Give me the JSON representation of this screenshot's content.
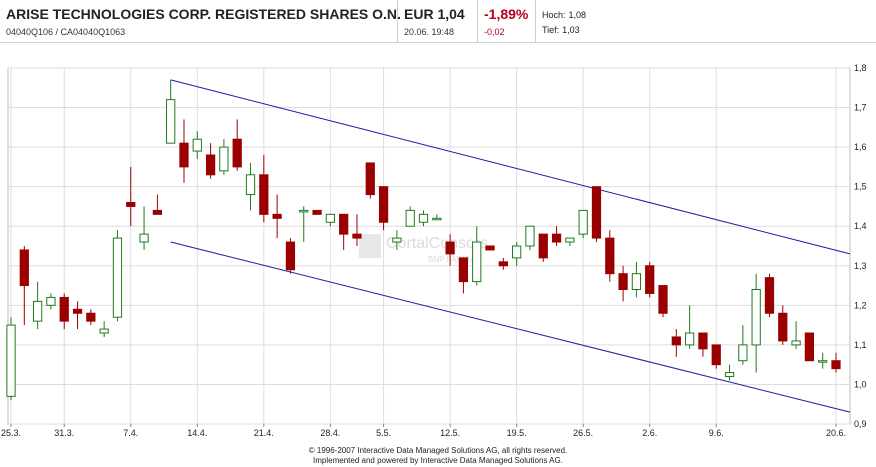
{
  "header": {
    "name": "ARISE TECHNOLOGIES CORP. REGISTERED SHARES O.N.",
    "ids": "04040Q106  /  CA04040Q1063",
    "price": "EUR 1,04",
    "datetime": "20.06. 19:48",
    "change_pct": "-1,89%",
    "change_abs": "-0,02",
    "high_label": "Hoch:",
    "high_value": "1,08",
    "low_label": "Tief:",
    "low_value": "1,03"
  },
  "watermark": {
    "line1": "CortalConsors",
    "line2": "BNP PARIBAS"
  },
  "footer": {
    "line1": "© 1996-2007 Interactive Data Managed Solutions AG, all rights reserved.",
    "line2": "Implemented and powered by Interactive Data Managed Solutions AG."
  },
  "colors": {
    "up_body": "#ffffff",
    "up_stroke": "#1f7a1f",
    "down_body": "#9b0000",
    "trend_line": "#1a1aa6",
    "grid": "#dddddd"
  },
  "chart_data": {
    "type": "candlestick",
    "ylim": [
      0.9,
      1.8
    ],
    "y_ticks": [
      "0,9",
      "1,0",
      "1,1",
      "1,2",
      "1,3",
      "1,4",
      "1,5",
      "1,6",
      "1,7",
      "1,8"
    ],
    "x_tick_labels": [
      "25.3.",
      "31.3.",
      "7.4.",
      "14.4.",
      "21.4.",
      "28.4.",
      "5.5.",
      "12.5.",
      "19.5.",
      "26.5.",
      "2.6.",
      "9.6.",
      "20.6."
    ],
    "grid": true,
    "trend_channel": {
      "upper": {
        "start": [
          "10.4.",
          1.77
        ],
        "end": [
          "20.6.",
          1.33
        ]
      },
      "lower": {
        "start": [
          "10.4.",
          1.36
        ],
        "end": [
          "20.6.",
          0.93
        ]
      }
    },
    "candles": [
      {
        "date": "25.3.",
        "open": 0.97,
        "high": 1.17,
        "low": 0.96,
        "close": 1.15
      },
      {
        "date": "26.3.",
        "open": 1.34,
        "high": 1.35,
        "low": 1.15,
        "close": 1.25
      },
      {
        "date": "27.3.",
        "open": 1.16,
        "high": 1.26,
        "low": 1.14,
        "close": 1.21
      },
      {
        "date": "28.3.",
        "open": 1.2,
        "high": 1.23,
        "low": 1.19,
        "close": 1.22
      },
      {
        "date": "31.3.",
        "open": 1.22,
        "high": 1.23,
        "low": 1.14,
        "close": 1.16
      },
      {
        "date": "1.4.",
        "open": 1.19,
        "high": 1.21,
        "low": 1.14,
        "close": 1.18
      },
      {
        "date": "2.4.",
        "open": 1.18,
        "high": 1.19,
        "low": 1.15,
        "close": 1.16
      },
      {
        "date": "3.4.",
        "open": 1.13,
        "high": 1.16,
        "low": 1.12,
        "close": 1.14
      },
      {
        "date": "4.4.",
        "open": 1.17,
        "high": 1.39,
        "low": 1.16,
        "close": 1.37
      },
      {
        "date": "7.4.",
        "open": 1.46,
        "high": 1.55,
        "low": 1.4,
        "close": 1.45
      },
      {
        "date": "8.4.",
        "open": 1.36,
        "high": 1.45,
        "low": 1.34,
        "close": 1.38
      },
      {
        "date": "9.4.",
        "open": 1.44,
        "high": 1.48,
        "low": 1.43,
        "close": 1.43
      },
      {
        "date": "10.4.",
        "open": 1.61,
        "high": 1.77,
        "low": 1.61,
        "close": 1.72
      },
      {
        "date": "11.4.",
        "open": 1.61,
        "high": 1.67,
        "low": 1.51,
        "close": 1.55
      },
      {
        "date": "14.4.",
        "open": 1.59,
        "high": 1.64,
        "low": 1.57,
        "close": 1.62
      },
      {
        "date": "15.4.",
        "open": 1.58,
        "high": 1.61,
        "low": 1.52,
        "close": 1.53
      },
      {
        "date": "16.4.",
        "open": 1.54,
        "high": 1.62,
        "low": 1.53,
        "close": 1.6
      },
      {
        "date": "17.4.",
        "open": 1.62,
        "high": 1.67,
        "low": 1.54,
        "close": 1.55
      },
      {
        "date": "18.4.",
        "open": 1.48,
        "high": 1.56,
        "low": 1.44,
        "close": 1.53
      },
      {
        "date": "21.4.",
        "open": 1.53,
        "high": 1.58,
        "low": 1.41,
        "close": 1.43
      },
      {
        "date": "22.4.",
        "open": 1.43,
        "high": 1.48,
        "low": 1.37,
        "close": 1.42
      },
      {
        "date": "23.4.",
        "open": 1.36,
        "high": 1.37,
        "low": 1.28,
        "close": 1.29
      },
      {
        "date": "24.4.",
        "open": 1.44,
        "high": 1.45,
        "low": 1.36,
        "close": 1.44
      },
      {
        "date": "25.4.",
        "open": 1.44,
        "high": 1.44,
        "low": 1.43,
        "close": 1.43
      },
      {
        "date": "28.4.",
        "open": 1.41,
        "high": 1.43,
        "low": 1.4,
        "close": 1.43
      },
      {
        "date": "29.4.",
        "open": 1.43,
        "high": 1.43,
        "low": 1.34,
        "close": 1.38
      },
      {
        "date": "30.4.",
        "open": 1.38,
        "high": 1.43,
        "low": 1.35,
        "close": 1.37
      },
      {
        "date": "2.5.",
        "open": 1.56,
        "high": 1.56,
        "low": 1.47,
        "close": 1.48
      },
      {
        "date": "5.5.",
        "open": 1.5,
        "high": 1.5,
        "low": 1.39,
        "close": 1.41
      },
      {
        "date": "6.5.",
        "open": 1.36,
        "high": 1.39,
        "low": 1.34,
        "close": 1.37
      },
      {
        "date": "7.5.",
        "open": 1.4,
        "high": 1.45,
        "low": 1.4,
        "close": 1.44
      },
      {
        "date": "8.5.",
        "open": 1.41,
        "high": 1.44,
        "low": 1.4,
        "close": 1.43
      },
      {
        "date": "9.5.",
        "open": 1.42,
        "high": 1.43,
        "low": 1.42,
        "close": 1.42
      },
      {
        "date": "12.5.",
        "open": 1.36,
        "high": 1.38,
        "low": 1.3,
        "close": 1.33
      },
      {
        "date": "13.5.",
        "open": 1.32,
        "high": 1.32,
        "low": 1.23,
        "close": 1.26
      },
      {
        "date": "14.5.",
        "open": 1.26,
        "high": 1.4,
        "low": 1.25,
        "close": 1.36
      },
      {
        "date": "15.5.",
        "open": 1.35,
        "high": 1.35,
        "low": 1.34,
        "close": 1.34
      },
      {
        "date": "16.5.",
        "open": 1.31,
        "high": 1.32,
        "low": 1.29,
        "close": 1.3
      },
      {
        "date": "19.5.",
        "open": 1.32,
        "high": 1.36,
        "low": 1.3,
        "close": 1.35
      },
      {
        "date": "20.5.",
        "open": 1.35,
        "high": 1.4,
        "low": 1.34,
        "close": 1.4
      },
      {
        "date": "21.5.",
        "open": 1.38,
        "high": 1.38,
        "low": 1.31,
        "close": 1.32
      },
      {
        "date": "22.5.",
        "open": 1.38,
        "high": 1.4,
        "low": 1.35,
        "close": 1.36
      },
      {
        "date": "23.5.",
        "open": 1.36,
        "high": 1.37,
        "low": 1.35,
        "close": 1.37
      },
      {
        "date": "26.5.",
        "open": 1.38,
        "high": 1.44,
        "low": 1.37,
        "close": 1.44
      },
      {
        "date": "27.5.",
        "open": 1.5,
        "high": 1.5,
        "low": 1.36,
        "close": 1.37
      },
      {
        "date": "28.5.",
        "open": 1.37,
        "high": 1.39,
        "low": 1.26,
        "close": 1.28
      },
      {
        "date": "29.5.",
        "open": 1.28,
        "high": 1.3,
        "low": 1.21,
        "close": 1.24
      },
      {
        "date": "30.5.",
        "open": 1.24,
        "high": 1.31,
        "low": 1.22,
        "close": 1.28
      },
      {
        "date": "2.6.",
        "open": 1.3,
        "high": 1.31,
        "low": 1.22,
        "close": 1.23
      },
      {
        "date": "3.6.",
        "open": 1.25,
        "high": 1.25,
        "low": 1.17,
        "close": 1.18
      },
      {
        "date": "4.6.",
        "open": 1.12,
        "high": 1.14,
        "low": 1.07,
        "close": 1.1
      },
      {
        "date": "5.6.",
        "open": 1.1,
        "high": 1.2,
        "low": 1.09,
        "close": 1.13
      },
      {
        "date": "6.6.",
        "open": 1.13,
        "high": 1.13,
        "low": 1.07,
        "close": 1.09
      },
      {
        "date": "9.6.",
        "open": 1.1,
        "high": 1.1,
        "low": 1.04,
        "close": 1.05
      },
      {
        "date": "10.6.",
        "open": 1.02,
        "high": 1.05,
        "low": 1.01,
        "close": 1.03
      },
      {
        "date": "11.6.",
        "open": 1.06,
        "high": 1.15,
        "low": 1.05,
        "close": 1.1
      },
      {
        "date": "12.6.",
        "open": 1.1,
        "high": 1.28,
        "low": 1.03,
        "close": 1.24
      },
      {
        "date": "13.6.",
        "open": 1.27,
        "high": 1.28,
        "low": 1.17,
        "close": 1.18
      },
      {
        "date": "16.6.",
        "open": 1.18,
        "high": 1.2,
        "low": 1.1,
        "close": 1.11
      },
      {
        "date": "17.6.",
        "open": 1.1,
        "high": 1.16,
        "low": 1.09,
        "close": 1.11
      },
      {
        "date": "18.6.",
        "open": 1.13,
        "high": 1.13,
        "low": 1.06,
        "close": 1.06
      },
      {
        "date": "19.6.",
        "open": 1.06,
        "high": 1.08,
        "low": 1.04,
        "close": 1.06
      },
      {
        "date": "20.6.",
        "open": 1.06,
        "high": 1.08,
        "low": 1.03,
        "close": 1.04
      }
    ]
  }
}
